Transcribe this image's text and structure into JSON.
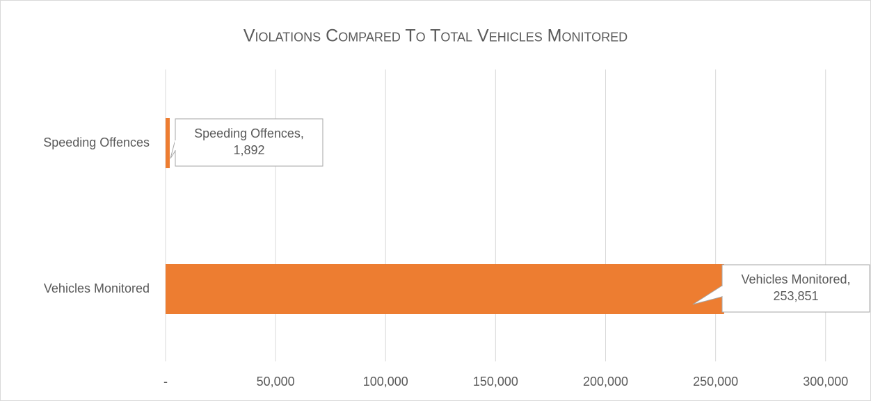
{
  "chart_data": {
    "type": "hbar",
    "title": "Violations Compared To Total Vehicles Monitored",
    "categories": [
      "Speeding Offences",
      "Vehicles Monitored"
    ],
    "values": [
      1892,
      253851
    ],
    "value_labels": [
      "Speeding Offences, 1,892",
      "Vehicles Monitored, 253,851"
    ],
    "color": "#ed7d31",
    "xlim": [
      0,
      320000
    ],
    "xticks": [
      {
        "value": 0,
        "label": "-"
      },
      {
        "value": 50000,
        "label": "50,000"
      },
      {
        "value": 100000,
        "label": "100,000"
      },
      {
        "value": 150000,
        "label": "150,000"
      },
      {
        "value": 200000,
        "label": "200,000"
      },
      {
        "value": 250000,
        "label": "250,000"
      },
      {
        "value": 300000,
        "label": "300,000"
      }
    ],
    "grid": true
  }
}
